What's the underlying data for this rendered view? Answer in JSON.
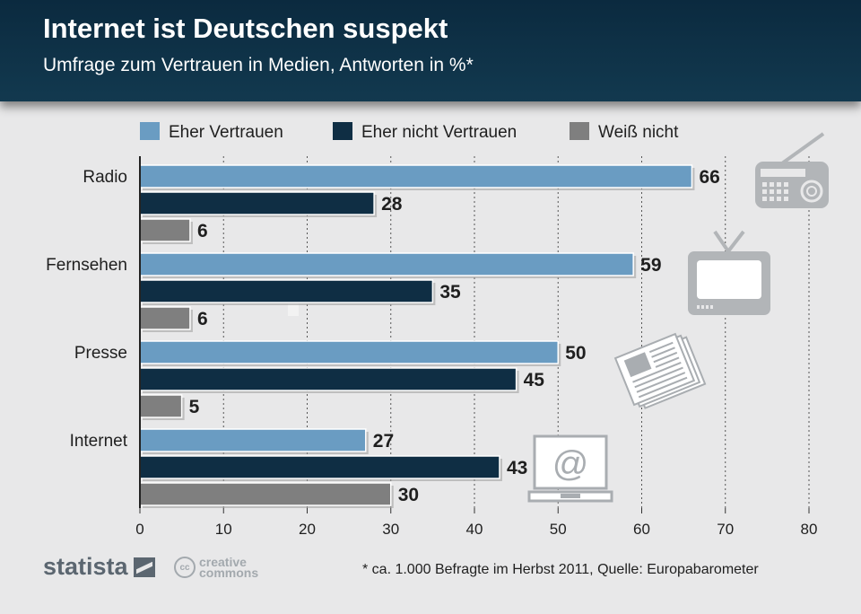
{
  "header": {
    "title": "Internet ist Deutschen suspekt",
    "subtitle": "Umfrage zum Vertrauen in Medien, Antworten in %*"
  },
  "chart_data": {
    "type": "bar",
    "orientation": "horizontal",
    "categories": [
      "Radio",
      "Fernsehen",
      "Presse",
      "Internet"
    ],
    "series": [
      {
        "name": "Eher Vertrauen",
        "color": "#6a9cc2",
        "values": [
          66,
          59,
          50,
          27
        ]
      },
      {
        "name": "Eher nicht Vertrauen",
        "color": "#0f2e44",
        "values": [
          28,
          35,
          45,
          43
        ]
      },
      {
        "name": "Weiß nicht",
        "color": "#7f7f7f",
        "values": [
          6,
          6,
          5,
          30
        ]
      }
    ],
    "xlim": [
      0,
      80
    ],
    "xticks": [
      0,
      10,
      20,
      30,
      40,
      50,
      60,
      70,
      80
    ],
    "grid": true,
    "legend": "top",
    "icons": [
      "radio-icon",
      "television-icon",
      "newspaper-icon",
      "laptop-email-icon"
    ]
  },
  "footer": {
    "brand": "statista",
    "license_line1": "creative",
    "license_line2": "commons",
    "license_badge": "cc",
    "note": "* ca. 1.000 Befragte im Herbst 2011, Quelle: Europabarometer"
  }
}
